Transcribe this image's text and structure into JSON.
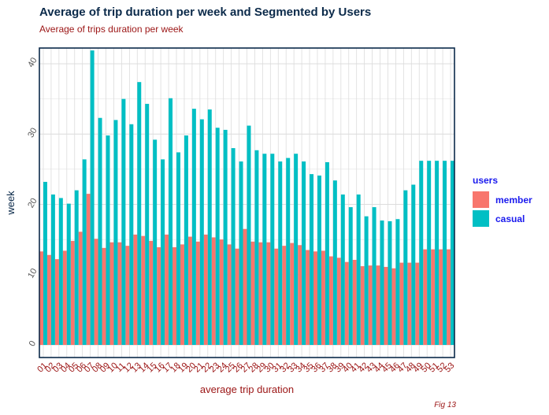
{
  "header": {
    "title": "Average of trip duration per week and Segmented by Users",
    "subtitle": "Average of trips duration per week"
  },
  "caption": "Fig 13",
  "legend": {
    "title": "users",
    "items": [
      {
        "label": "member",
        "color": "#f8766d"
      },
      {
        "label": "casual",
        "color": "#00bfc4"
      }
    ]
  },
  "chart_data": {
    "type": "bar",
    "title": "Average of trip duration per week and Segmented by Users",
    "subtitle": "Average of trips duration per week",
    "xlabel": "average trip duration",
    "ylabel": "week",
    "ylim": [
      0,
      43
    ],
    "yticks": [
      0,
      10,
      20,
      30,
      40
    ],
    "grid": true,
    "legend_position": "right",
    "categories": [
      "01",
      "02",
      "03",
      "04",
      "05",
      "06",
      "07",
      "08",
      "09",
      "10",
      "11",
      "12",
      "13",
      "14",
      "15",
      "16",
      "17",
      "18",
      "19",
      "20",
      "21",
      "22",
      "23",
      "24",
      "25",
      "26",
      "27",
      "28",
      "29",
      "30",
      "31",
      "32",
      "33",
      "34",
      "35",
      "36",
      "37",
      "38",
      "39",
      "40",
      "41",
      "42",
      "43",
      "44",
      "45",
      "46",
      "47",
      "48",
      "49",
      "50",
      "51",
      "52",
      "53"
    ],
    "series": [
      {
        "name": "member",
        "color": "#f8766d",
        "values": [
          13.3,
          12.8,
          12.2,
          13.4,
          14.8,
          16.1,
          21.5,
          15.1,
          13.8,
          14.6,
          14.6,
          14.1,
          15.7,
          15.5,
          14.8,
          13.9,
          15.7,
          13.9,
          14.3,
          15.4,
          14.7,
          15.7,
          15.3,
          15.0,
          14.3,
          13.7,
          16.5,
          14.7,
          14.6,
          14.6,
          13.7,
          14.1,
          14.5,
          14.2,
          13.5,
          13.3,
          13.4,
          12.6,
          12.4,
          11.8,
          12.1,
          11.2,
          11.3,
          11.3,
          11.1,
          10.9,
          11.7,
          11.7,
          11.7,
          13.6,
          13.6,
          13.6,
          13.6
        ]
      },
      {
        "name": "casual",
        "color": "#00bfc4",
        "values": [
          23.2,
          21.4,
          20.9,
          20.1,
          22.0,
          26.4,
          41.9,
          32.3,
          29.8,
          32.0,
          35.0,
          31.4,
          37.4,
          34.3,
          29.2,
          26.4,
          35.1,
          27.4,
          29.8,
          33.6,
          32.1,
          33.5,
          30.9,
          30.6,
          28.0,
          26.1,
          31.2,
          27.7,
          27.2,
          27.2,
          26.1,
          26.6,
          27.2,
          26.1,
          24.3,
          24.1,
          26.0,
          23.4,
          21.4,
          19.6,
          21.4,
          18.3,
          19.6,
          17.7,
          17.6,
          17.9,
          22.0,
          22.8,
          26.2,
          26.2,
          26.2,
          26.2,
          26.2
        ]
      }
    ]
  }
}
